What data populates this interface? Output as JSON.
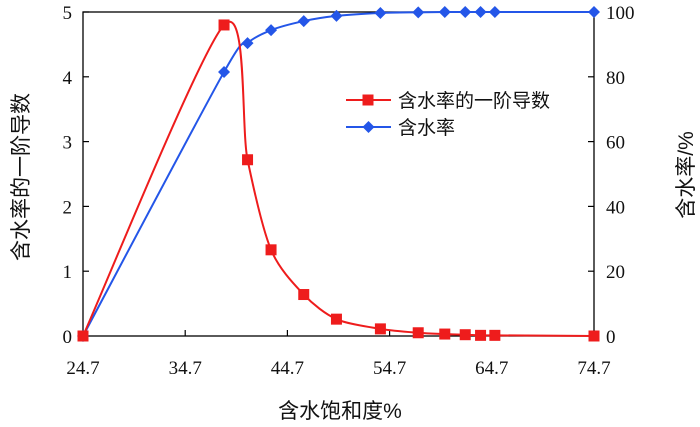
{
  "chart_data": {
    "type": "line",
    "xlabel": "含水饱和度%",
    "ylabel": "含水率的一阶导数",
    "y2label": "含水率/%",
    "xlim": [
      24.7,
      74.7
    ],
    "ylim": [
      0,
      5
    ],
    "y2lim": [
      0,
      100
    ],
    "xticks": [
      "24.7",
      "34.7",
      "44.7",
      "54.7",
      "64.7",
      "74.7"
    ],
    "yticks": [
      "0",
      "1",
      "2",
      "3",
      "4",
      "5"
    ],
    "y2ticks": [
      "0",
      "20",
      "40",
      "60",
      "80",
      "100"
    ],
    "grid": false,
    "legend": "top-right",
    "x": [
      24.7,
      38.5,
      40.8,
      43.1,
      46.3,
      49.5,
      53.8,
      57.5,
      60.1,
      62.1,
      63.6,
      65.0,
      74.7
    ],
    "series": [
      {
        "name": "含水率的一阶导数",
        "axis": "left",
        "color": "#ee1c1c",
        "marker": "square",
        "values": [
          0,
          4.8,
          2.72,
          1.33,
          0.64,
          0.26,
          0.11,
          0.05,
          0.03,
          0.02,
          0.01,
          0.01,
          0
        ]
      },
      {
        "name": "含水率",
        "axis": "right",
        "color": "#2456e8",
        "marker": "diamond",
        "values": [
          0,
          81.5,
          90.4,
          94.4,
          97.2,
          98.8,
          99.7,
          99.9,
          100,
          100,
          100,
          100,
          100
        ]
      }
    ]
  }
}
